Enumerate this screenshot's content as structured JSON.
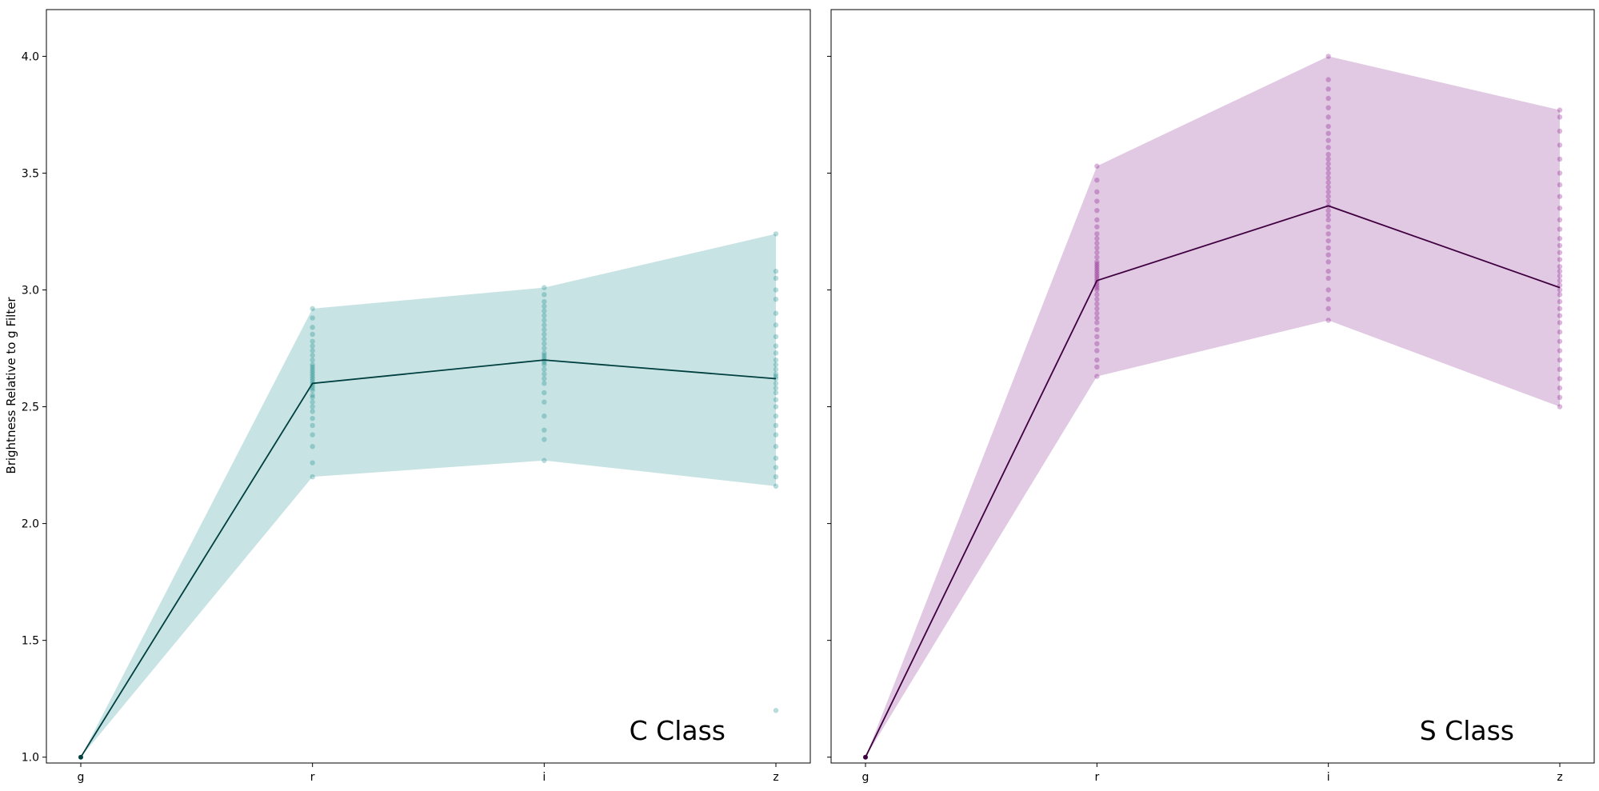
{
  "figure": {
    "ylabel": "Brightness Relative to g Filter"
  },
  "chart_data": [
    {
      "type": "line",
      "title": "",
      "annotation": "C Class",
      "xlabel": "",
      "ylabel": "Brightness Relative to g Filter",
      "categories": [
        "g",
        "r",
        "i",
        "z"
      ],
      "ylim": [
        0.975,
        4.2
      ],
      "yticks": [
        "1.0",
        "1.5",
        "2.0",
        "2.5",
        "3.0",
        "3.5",
        "4.0"
      ],
      "grid": false,
      "colors": {
        "band": "#c8e3e4",
        "line": "#003f3f",
        "points": "#007f7f"
      },
      "series": [
        {
          "kind": "mean",
          "values": [
            1.0,
            2.6,
            2.7,
            2.62
          ]
        },
        {
          "kind": "band_upper",
          "values": [
            1.0,
            2.92,
            3.01,
            3.24
          ]
        },
        {
          "kind": "band_lower",
          "values": [
            1.0,
            2.2,
            2.27,
            2.16
          ]
        }
      ],
      "points": {
        "r": [
          2.2,
          2.26,
          2.33,
          2.38,
          2.42,
          2.45,
          2.48,
          2.5,
          2.52,
          2.54,
          2.55,
          2.57,
          2.58,
          2.59,
          2.6,
          2.61,
          2.62,
          2.63,
          2.64,
          2.65,
          2.66,
          2.67,
          2.68,
          2.7,
          2.72,
          2.74,
          2.76,
          2.78,
          2.81,
          2.84,
          2.88,
          2.92
        ],
        "i": [
          2.27,
          2.36,
          2.4,
          2.46,
          2.52,
          2.56,
          2.6,
          2.62,
          2.64,
          2.66,
          2.68,
          2.69,
          2.7,
          2.71,
          2.72,
          2.73,
          2.75,
          2.77,
          2.79,
          2.81,
          2.83,
          2.85,
          2.87,
          2.89,
          2.91,
          2.93,
          2.95,
          2.98,
          3.01
        ],
        "z": [
          1.2,
          2.16,
          2.2,
          2.24,
          2.28,
          2.33,
          2.38,
          2.42,
          2.46,
          2.5,
          2.53,
          2.56,
          2.58,
          2.6,
          2.62,
          2.63,
          2.64,
          2.66,
          2.68,
          2.7,
          2.73,
          2.76,
          2.8,
          2.85,
          2.9,
          2.96,
          3.0,
          3.05,
          3.08,
          3.24
        ]
      }
    },
    {
      "type": "line",
      "title": "",
      "annotation": "S Class",
      "xlabel": "",
      "ylabel": "",
      "categories": [
        "g",
        "r",
        "i",
        "z"
      ],
      "ylim": [
        0.975,
        4.2
      ],
      "yticks": [
        "",
        "",
        "",
        "",
        "",
        "",
        ""
      ],
      "grid": false,
      "colors": {
        "band": "#e1c8e3",
        "line": "#3f003f",
        "points": "#7f007f"
      },
      "series": [
        {
          "kind": "mean",
          "values": [
            1.0,
            3.04,
            3.36,
            3.01
          ]
        },
        {
          "kind": "band_upper",
          "values": [
            1.0,
            3.53,
            4.0,
            3.77
          ]
        },
        {
          "kind": "band_lower",
          "values": [
            1.0,
            2.63,
            2.87,
            2.5
          ]
        }
      ],
      "points": {
        "r": [
          2.63,
          2.67,
          2.7,
          2.74,
          2.77,
          2.8,
          2.83,
          2.86,
          2.88,
          2.9,
          2.92,
          2.94,
          2.96,
          2.98,
          3.0,
          3.01,
          3.02,
          3.03,
          3.04,
          3.05,
          3.06,
          3.07,
          3.08,
          3.09,
          3.1,
          3.11,
          3.12,
          3.14,
          3.16,
          3.18,
          3.2,
          3.22,
          3.24,
          3.27,
          3.3,
          3.34,
          3.38,
          3.42,
          3.47,
          3.53
        ],
        "i": [
          2.87,
          2.92,
          2.96,
          3.0,
          3.05,
          3.08,
          3.12,
          3.15,
          3.18,
          3.21,
          3.24,
          3.27,
          3.3,
          3.32,
          3.34,
          3.36,
          3.38,
          3.4,
          3.42,
          3.44,
          3.46,
          3.48,
          3.5,
          3.52,
          3.54,
          3.56,
          3.58,
          3.61,
          3.64,
          3.67,
          3.7,
          3.74,
          3.78,
          3.82,
          3.86,
          3.9,
          4.0
        ],
        "z": [
          2.5,
          2.54,
          2.58,
          2.62,
          2.66,
          2.7,
          2.74,
          2.78,
          2.82,
          2.86,
          2.89,
          2.92,
          2.95,
          2.98,
          3.0,
          3.02,
          3.04,
          3.06,
          3.08,
          3.1,
          3.13,
          3.16,
          3.19,
          3.22,
          3.26,
          3.3,
          3.35,
          3.4,
          3.45,
          3.5,
          3.56,
          3.62,
          3.68,
          3.74,
          3.77
        ]
      }
    }
  ]
}
